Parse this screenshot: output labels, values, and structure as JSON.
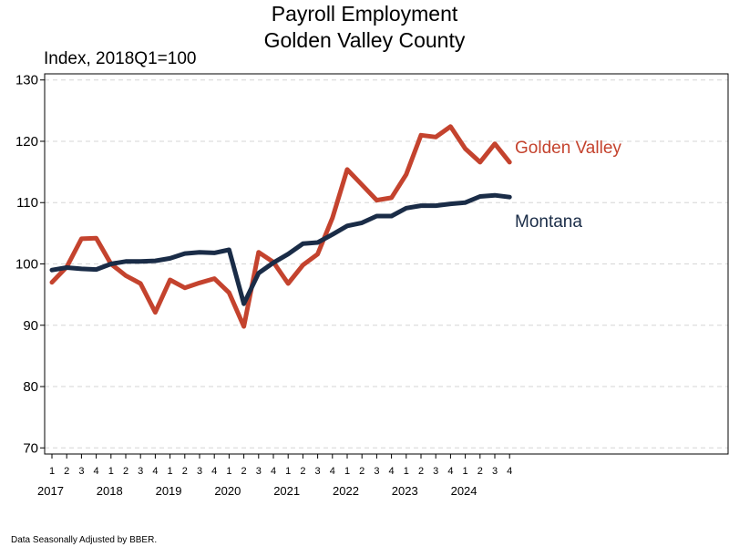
{
  "chart_data": {
    "type": "line",
    "title": "Payroll Employment",
    "subtitle": "Golden Valley County",
    "ylabel": "Index, 2018Q1=100",
    "ylim": [
      69,
      131
    ],
    "yticks": [
      70,
      80,
      90,
      100,
      110,
      120,
      130
    ],
    "grid": true,
    "footnote": "Data Seasonally Adjusted by BBER.",
    "x": [
      "2017Q1",
      "2017Q2",
      "2017Q3",
      "2017Q4",
      "2018Q1",
      "2018Q2",
      "2018Q3",
      "2018Q4",
      "2019Q1",
      "2019Q2",
      "2019Q3",
      "2019Q4",
      "2020Q1",
      "2020Q2",
      "2020Q3",
      "2020Q4",
      "2021Q1",
      "2021Q2",
      "2021Q3",
      "2021Q4",
      "2022Q1",
      "2022Q2",
      "2022Q3",
      "2022Q4",
      "2023Q1",
      "2023Q2",
      "2023Q3",
      "2023Q4",
      "2024Q1",
      "2024Q2",
      "2024Q3",
      "2024Q4"
    ],
    "quarter_labels": [
      "1",
      "2",
      "3",
      "4",
      "1",
      "2",
      "3",
      "4",
      "1",
      "2",
      "3",
      "4",
      "1",
      "2",
      "3",
      "4",
      "1",
      "2",
      "3",
      "4",
      "1",
      "2",
      "3",
      "4",
      "1",
      "2",
      "3",
      "4",
      "1",
      "2",
      "3",
      "4"
    ],
    "years": [
      "2017",
      "2018",
      "2019",
      "2020",
      "2021",
      "2022",
      "2023",
      "2024"
    ],
    "series": [
      {
        "name": "Golden Valley",
        "color": "#c4432e",
        "values": [
          97.0,
          99.5,
          104.1,
          104.2,
          100.0,
          98.1,
          96.8,
          92.1,
          97.4,
          96.1,
          96.9,
          97.6,
          95.3,
          89.8,
          101.9,
          100.3,
          96.8,
          99.8,
          101.6,
          107.5,
          115.4,
          112.9,
          110.4,
          110.8,
          114.6,
          121.0,
          120.7,
          122.4,
          118.8,
          116.6,
          119.6,
          116.6
        ]
      },
      {
        "name": "Montana",
        "color": "#1a2c47",
        "values": [
          99.0,
          99.4,
          99.2,
          99.1,
          100.0,
          100.4,
          100.4,
          100.5,
          100.9,
          101.7,
          101.9,
          101.8,
          102.3,
          93.5,
          98.5,
          100.2,
          101.6,
          103.3,
          103.5,
          104.8,
          106.2,
          106.7,
          107.8,
          107.8,
          109.1,
          109.5,
          109.5,
          109.8,
          110.0,
          111.0,
          111.2,
          110.9
        ]
      }
    ]
  }
}
